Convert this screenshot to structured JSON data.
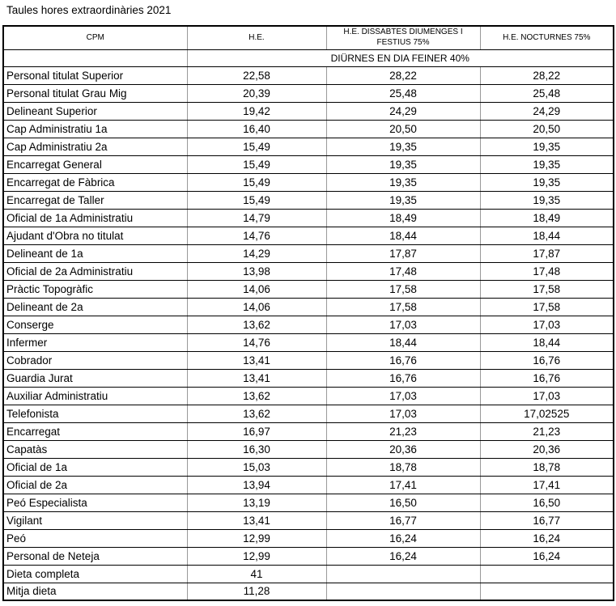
{
  "title": "Taules hores extraordinàries 2021",
  "table": {
    "columns": [
      "CPM",
      "H.E.",
      "H.E. DISSABTES DIUMENGES I FESTIUS 75%",
      "H.E. NOCTURNES 75%"
    ],
    "subheader": "DIÜRNES EN DIA FEINER 40%",
    "rows": [
      [
        "Personal titulat Superior",
        "22,58",
        "28,22",
        "28,22"
      ],
      [
        "Personal titulat Grau Mig",
        "20,39",
        "25,48",
        "25,48"
      ],
      [
        "Delineant Superior",
        "19,42",
        "24,29",
        "24,29"
      ],
      [
        "Cap Administratiu 1a",
        "16,40",
        "20,50",
        "20,50"
      ],
      [
        "Cap Administratiu 2a",
        "15,49",
        "19,35",
        "19,35"
      ],
      [
        "Encarregat General",
        "15,49",
        "19,35",
        "19,35"
      ],
      [
        "Encarregat de Fàbrica",
        "15,49",
        "19,35",
        "19,35"
      ],
      [
        "Encarregat de Taller",
        "15,49",
        "19,35",
        "19,35"
      ],
      [
        "Oficial de 1a Administratiu",
        "14,79",
        "18,49",
        "18,49"
      ],
      [
        "Ajudant d'Obra no titulat",
        "14,76",
        "18,44",
        "18,44"
      ],
      [
        "Delineant de 1a",
        "14,29",
        "17,87",
        "17,87"
      ],
      [
        "Oficial de 2a Administratiu",
        "13,98",
        "17,48",
        "17,48"
      ],
      [
        "Pràctic Topogràfic",
        "14,06",
        "17,58",
        "17,58"
      ],
      [
        "Delineant de 2a",
        "14,06",
        "17,58",
        "17,58"
      ],
      [
        "Conserge",
        "13,62",
        "17,03",
        "17,03"
      ],
      [
        "Infermer",
        "14,76",
        "18,44",
        "18,44"
      ],
      [
        "Cobrador",
        "13,41",
        "16,76",
        "16,76"
      ],
      [
        "Guardia Jurat",
        "13,41",
        "16,76",
        "16,76"
      ],
      [
        "Auxiliar Administratiu",
        "13,62",
        "17,03",
        "17,03"
      ],
      [
        "Telefonista",
        "13,62",
        "17,03",
        "17,02525"
      ],
      [
        "Encarregat",
        "16,97",
        "21,23",
        "21,23"
      ],
      [
        "Capatàs",
        "16,30",
        "20,36",
        "20,36"
      ],
      [
        "Oficial de 1a",
        "15,03",
        "18,78",
        "18,78"
      ],
      [
        "Oficial de 2a",
        "13,94",
        "17,41",
        "17,41"
      ],
      [
        "Peó Especialista",
        "13,19",
        "16,50",
        "16,50"
      ],
      [
        "Vigilant",
        "13,41",
        "16,77",
        "16,77"
      ],
      [
        "Peó",
        "12,99",
        "16,24",
        "16,24"
      ],
      [
        "Personal de Neteja",
        "12,99",
        "16,24",
        "16,24"
      ],
      [
        "Dieta completa",
        "41",
        "",
        ""
      ],
      [
        "Mitja dieta",
        "11,28",
        "",
        ""
      ]
    ]
  }
}
